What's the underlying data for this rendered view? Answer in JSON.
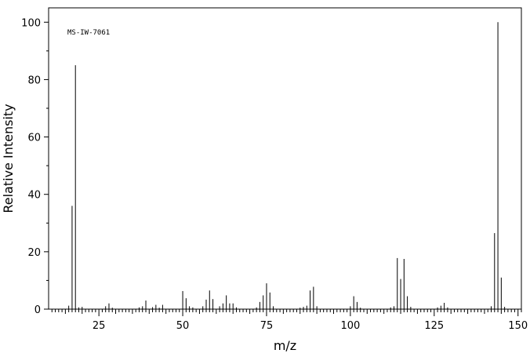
{
  "chart_data": {
    "type": "bar",
    "title": "",
    "xlabel": "m/z",
    "ylabel": "Relative Intensity",
    "annotation": "MS-IW-7061",
    "xlim": [
      10,
      151
    ],
    "ylim": [
      0,
      105
    ],
    "x_ticks": [
      25,
      50,
      75,
      100,
      125,
      150
    ],
    "y_ticks": [
      0,
      20,
      40,
      60,
      80,
      100
    ],
    "grid": false,
    "peaks": [
      {
        "x": 16,
        "y": 1.2
      },
      {
        "x": 17,
        "y": 36.0
      },
      {
        "x": 18,
        "y": 85.0
      },
      {
        "x": 19,
        "y": 0.6
      },
      {
        "x": 20,
        "y": 0.8
      },
      {
        "x": 27,
        "y": 1.0
      },
      {
        "x": 28,
        "y": 2.0
      },
      {
        "x": 29,
        "y": 0.5
      },
      {
        "x": 37,
        "y": 0.6
      },
      {
        "x": 38,
        "y": 1.0
      },
      {
        "x": 39,
        "y": 3.0
      },
      {
        "x": 41,
        "y": 0.7
      },
      {
        "x": 42,
        "y": 1.5
      },
      {
        "x": 43,
        "y": 0.5
      },
      {
        "x": 44,
        "y": 1.5
      },
      {
        "x": 50,
        "y": 6.3
      },
      {
        "x": 51,
        "y": 3.8
      },
      {
        "x": 52,
        "y": 1.0
      },
      {
        "x": 53,
        "y": 0.6
      },
      {
        "x": 56,
        "y": 1.0
      },
      {
        "x": 57,
        "y": 3.3
      },
      {
        "x": 58,
        "y": 6.5
      },
      {
        "x": 59,
        "y": 3.5
      },
      {
        "x": 61,
        "y": 1.0
      },
      {
        "x": 62,
        "y": 2.0
      },
      {
        "x": 63,
        "y": 4.8
      },
      {
        "x": 64,
        "y": 2.0
      },
      {
        "x": 65,
        "y": 2.0
      },
      {
        "x": 66,
        "y": 0.6
      },
      {
        "x": 72,
        "y": 0.6
      },
      {
        "x": 73,
        "y": 2.5
      },
      {
        "x": 74,
        "y": 4.8
      },
      {
        "x": 75,
        "y": 9.0
      },
      {
        "x": 76,
        "y": 5.8
      },
      {
        "x": 77,
        "y": 1.0
      },
      {
        "x": 85,
        "y": 0.5
      },
      {
        "x": 86,
        "y": 0.8
      },
      {
        "x": 87,
        "y": 1.2
      },
      {
        "x": 88,
        "y": 6.5
      },
      {
        "x": 89,
        "y": 7.8
      },
      {
        "x": 90,
        "y": 1.0
      },
      {
        "x": 100,
        "y": 1.0
      },
      {
        "x": 101,
        "y": 4.5
      },
      {
        "x": 102,
        "y": 2.5
      },
      {
        "x": 103,
        "y": 0.5
      },
      {
        "x": 112,
        "y": 0.6
      },
      {
        "x": 113,
        "y": 1.0
      },
      {
        "x": 114,
        "y": 17.8
      },
      {
        "x": 115,
        "y": 10.5
      },
      {
        "x": 116,
        "y": 17.5
      },
      {
        "x": 117,
        "y": 4.5
      },
      {
        "x": 118,
        "y": 0.8
      },
      {
        "x": 126,
        "y": 0.6
      },
      {
        "x": 127,
        "y": 1.2
      },
      {
        "x": 128,
        "y": 2.2
      },
      {
        "x": 129,
        "y": 0.6
      },
      {
        "x": 142,
        "y": 1.0
      },
      {
        "x": 143,
        "y": 26.5
      },
      {
        "x": 144,
        "y": 100.0
      },
      {
        "x": 145,
        "y": 11.0
      },
      {
        "x": 146,
        "y": 0.8
      }
    ]
  }
}
